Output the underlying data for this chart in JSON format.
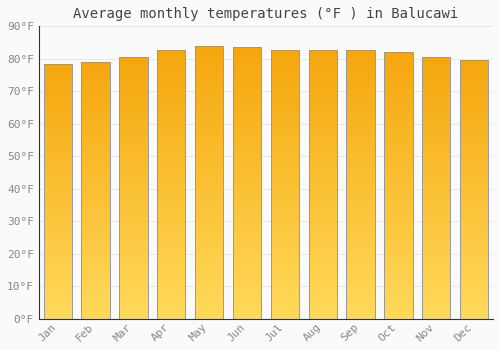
{
  "title": "Average monthly temperatures (°F ) in Balucawi",
  "months": [
    "Jan",
    "Feb",
    "Mar",
    "Apr",
    "May",
    "Jun",
    "Jul",
    "Aug",
    "Sep",
    "Oct",
    "Nov",
    "Dec"
  ],
  "values": [
    78.4,
    79.0,
    80.6,
    82.6,
    84.0,
    83.5,
    82.6,
    82.6,
    82.6,
    82.0,
    80.6,
    79.5
  ],
  "bar_color_top": "#F5A800",
  "bar_color_bottom": "#FFD060",
  "bar_edge_color": "#999999",
  "background_color": "#FAFAFA",
  "grid_color": "#E8E8E8",
  "ylim": [
    0,
    90
  ],
  "yticks": [
    0,
    10,
    20,
    30,
    40,
    50,
    60,
    70,
    80,
    90
  ],
  "ytick_labels": [
    "0°F",
    "10°F",
    "20°F",
    "30°F",
    "40°F",
    "50°F",
    "60°F",
    "70°F",
    "80°F",
    "90°F"
  ],
  "title_fontsize": 10,
  "tick_fontsize": 8,
  "tick_color": "#888888",
  "axis_color": "#333333"
}
